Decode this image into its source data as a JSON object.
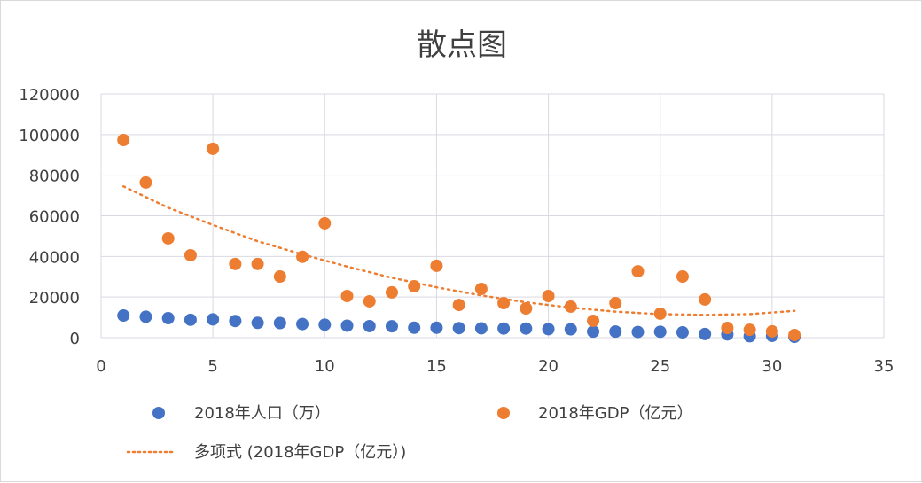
{
  "chart_data": {
    "type": "scatter",
    "title": "散点图",
    "xlabel": "",
    "ylabel": "",
    "xlim": [
      0,
      35
    ],
    "ylim": [
      0,
      120000
    ],
    "x_ticks": [
      "0",
      "5",
      "10",
      "15",
      "20",
      "25",
      "30",
      "35"
    ],
    "y_ticks": [
      "0",
      "20000",
      "40000",
      "60000",
      "80000",
      "100000",
      "120000"
    ],
    "grid": true,
    "legend_position": "bottom",
    "x": [
      1,
      2,
      3,
      4,
      5,
      6,
      7,
      8,
      9,
      10,
      11,
      12,
      13,
      14,
      15,
      16,
      17,
      18,
      19,
      20,
      21,
      22,
      23,
      24,
      25,
      26,
      27,
      28,
      29,
      30,
      31
    ],
    "series": [
      {
        "name": "2018年人口（万）",
        "color": "#4472C4",
        "marker": "circle",
        "values": [
          10900,
          10300,
          9600,
          8800,
          9000,
          8200,
          7300,
          7200,
          6700,
          6400,
          5900,
          5700,
          5600,
          4900,
          4900,
          4700,
          4600,
          4500,
          4500,
          4200,
          4100,
          3000,
          3000,
          2800,
          2900,
          2600,
          1800,
          1600,
          700,
          900,
          400
        ]
      },
      {
        "name": "2018年GDP（亿元）",
        "color": "#ED7D31",
        "marker": "circle",
        "values": [
          97300,
          76400,
          48900,
          40600,
          93000,
          36300,
          36300,
          30100,
          39800,
          56300,
          20500,
          17900,
          22300,
          25300,
          35400,
          16100,
          24000,
          17000,
          14400,
          20500,
          15300,
          8300,
          17000,
          32700,
          11800,
          30100,
          18800,
          4800,
          3900,
          3100,
          1300
        ]
      },
      {
        "name": "多项式 (2018年GDP（亿元）)",
        "color": "#ED7D31",
        "type": "trendline-dotted",
        "x": [
          1,
          3,
          5,
          7,
          9,
          11,
          13,
          15,
          17,
          19,
          21,
          23,
          25,
          27,
          29,
          31
        ],
        "values": [
          74500,
          64000,
          55500,
          47500,
          41000,
          35000,
          29500,
          24800,
          20800,
          17400,
          14800,
          12800,
          11600,
          11200,
          11600,
          13200
        ]
      }
    ]
  },
  "legend": {
    "items": [
      {
        "label": "2018年人口（万）",
        "color": "#4472C4"
      },
      {
        "label": "2018年GDP（亿元）",
        "color": "#ED7D31"
      },
      {
        "label": "多项式 (2018年GDP（亿元）)",
        "color": "#ED7D31"
      }
    ]
  }
}
